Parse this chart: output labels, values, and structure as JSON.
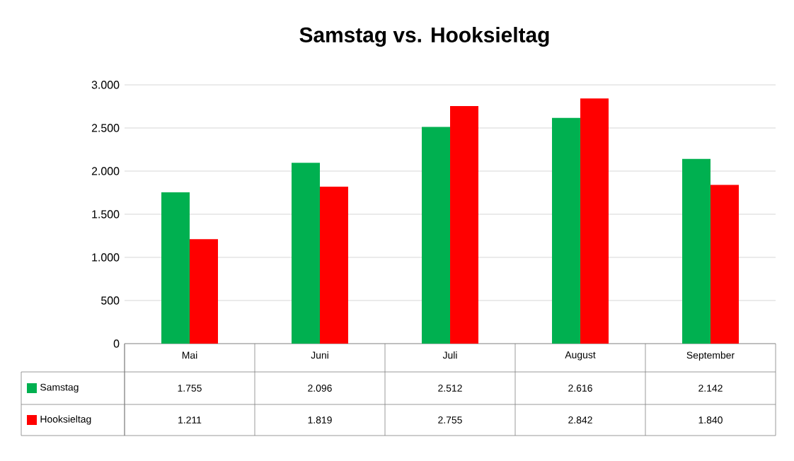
{
  "chart_data": {
    "type": "bar",
    "title": "Samstag vs. Hooksieltag",
    "categories": [
      "Mai",
      "Juni",
      "Juli",
      "August",
      "September"
    ],
    "series": [
      {
        "name": "Samstag",
        "color": "#00b050",
        "values": [
          1755,
          2096,
          2512,
          2616,
          2142
        ],
        "value_labels": [
          "1.755",
          "2.096",
          "2.512",
          "2.616",
          "2.142"
        ]
      },
      {
        "name": "Hooksieltag",
        "color": "#ff0000",
        "values": [
          1211,
          1819,
          2755,
          2842,
          1840
        ],
        "value_labels": [
          "1.211",
          "1.819",
          "2.755",
          "2.842",
          "1.840"
        ]
      }
    ],
    "ylim": [
      0,
      3000
    ],
    "yticks": [
      0,
      500,
      {
        "value": 1000,
        "label": "1.000"
      },
      {
        "value": 1500,
        "label": "1.500"
      },
      {
        "value": 2000,
        "label": "2.000"
      },
      {
        "value": 2500,
        "label": "2.500"
      },
      {
        "value": 3000,
        "label": "3.000"
      }
    ],
    "grid": "y",
    "legend": "bottom"
  }
}
